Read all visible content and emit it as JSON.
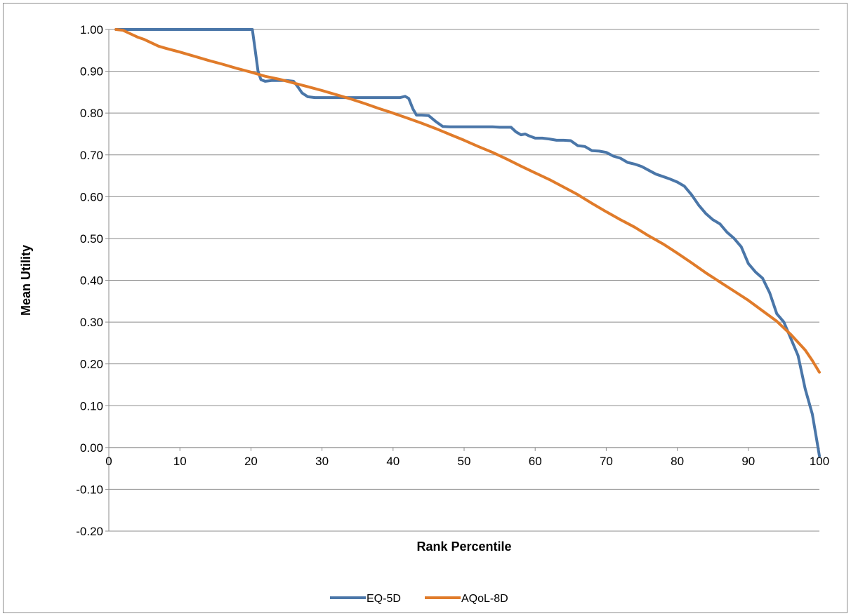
{
  "chart_data": {
    "type": "line",
    "title": "",
    "xlabel": "Rank Percentile",
    "ylabel": "Mean Utility",
    "xlim": [
      0,
      100
    ],
    "ylim": [
      -0.2,
      1.0
    ],
    "x_ticks": [
      "0",
      "10",
      "20",
      "30",
      "40",
      "50",
      "60",
      "70",
      "80",
      "90",
      "100"
    ],
    "y_ticks": [
      "1.00",
      "0.90",
      "0.80",
      "0.70",
      "0.60",
      "0.50",
      "0.40",
      "0.30",
      "0.20",
      "0.10",
      "0.00",
      "-0.10",
      "-0.20"
    ],
    "grid": "horizontal",
    "legend_position": "bottom",
    "series": [
      {
        "name": "EQ-5D",
        "color": "#4a76a8",
        "points": [
          [
            1,
            1.0
          ],
          [
            19.5,
            1.0
          ],
          [
            20.2,
            1.0
          ],
          [
            20.6,
            0.95
          ],
          [
            21.0,
            0.9
          ],
          [
            21.4,
            0.88
          ],
          [
            22,
            0.876
          ],
          [
            23,
            0.878
          ],
          [
            25,
            0.878
          ],
          [
            26,
            0.876
          ],
          [
            26.5,
            0.865
          ],
          [
            27.2,
            0.848
          ],
          [
            28,
            0.839
          ],
          [
            29,
            0.837
          ],
          [
            33,
            0.837
          ],
          [
            38,
            0.837
          ],
          [
            41,
            0.837
          ],
          [
            41.7,
            0.84
          ],
          [
            42.2,
            0.835
          ],
          [
            42.8,
            0.81
          ],
          [
            43.3,
            0.795
          ],
          [
            44,
            0.795
          ],
          [
            45,
            0.794
          ],
          [
            46,
            0.78
          ],
          [
            47,
            0.768
          ],
          [
            48,
            0.767
          ],
          [
            50,
            0.767
          ],
          [
            54,
            0.767
          ],
          [
            55,
            0.766
          ],
          [
            56,
            0.766
          ],
          [
            56.6,
            0.766
          ],
          [
            57.3,
            0.755
          ],
          [
            58,
            0.748
          ],
          [
            58.6,
            0.75
          ],
          [
            59.2,
            0.745
          ],
          [
            60,
            0.74
          ],
          [
            61,
            0.74
          ],
          [
            62,
            0.738
          ],
          [
            63,
            0.735
          ],
          [
            64,
            0.735
          ],
          [
            65,
            0.734
          ],
          [
            66,
            0.722
          ],
          [
            67,
            0.72
          ],
          [
            68,
            0.71
          ],
          [
            69,
            0.709
          ],
          [
            70,
            0.706
          ],
          [
            71,
            0.697
          ],
          [
            72,
            0.692
          ],
          [
            73,
            0.682
          ],
          [
            74,
            0.678
          ],
          [
            75,
            0.672
          ],
          [
            76,
            0.663
          ],
          [
            77,
            0.654
          ],
          [
            78,
            0.648
          ],
          [
            79,
            0.642
          ],
          [
            80,
            0.635
          ],
          [
            81,
            0.625
          ],
          [
            82,
            0.605
          ],
          [
            83,
            0.58
          ],
          [
            84,
            0.56
          ],
          [
            85,
            0.545
          ],
          [
            86,
            0.535
          ],
          [
            87,
            0.515
          ],
          [
            88,
            0.5
          ],
          [
            89,
            0.48
          ],
          [
            90,
            0.44
          ],
          [
            91,
            0.42
          ],
          [
            92,
            0.405
          ],
          [
            93,
            0.37
          ],
          [
            94,
            0.32
          ],
          [
            95,
            0.3
          ],
          [
            96,
            0.26
          ],
          [
            97,
            0.22
          ],
          [
            97.5,
            0.18
          ],
          [
            98,
            0.14
          ],
          [
            99,
            0.08
          ],
          [
            99.6,
            0.02
          ],
          [
            100,
            -0.02
          ]
        ]
      },
      {
        "name": "AQoL-8D",
        "color": "#e07b2a",
        "points": [
          [
            1,
            1.0
          ],
          [
            2,
            0.998
          ],
          [
            3,
            0.99
          ],
          [
            4,
            0.982
          ],
          [
            5,
            0.976
          ],
          [
            6,
            0.968
          ],
          [
            7,
            0.96
          ],
          [
            8,
            0.955
          ],
          [
            10,
            0.946
          ],
          [
            12,
            0.936
          ],
          [
            14,
            0.926
          ],
          [
            16,
            0.917
          ],
          [
            18,
            0.907
          ],
          [
            20,
            0.898
          ],
          [
            22,
            0.888
          ],
          [
            24,
            0.881
          ],
          [
            26,
            0.872
          ],
          [
            28,
            0.863
          ],
          [
            30,
            0.854
          ],
          [
            32,
            0.844
          ],
          [
            34,
            0.834
          ],
          [
            36,
            0.823
          ],
          [
            38,
            0.811
          ],
          [
            40,
            0.8
          ],
          [
            42,
            0.788
          ],
          [
            44,
            0.776
          ],
          [
            46,
            0.763
          ],
          [
            48,
            0.749
          ],
          [
            50,
            0.735
          ],
          [
            52,
            0.72
          ],
          [
            54,
            0.706
          ],
          [
            56,
            0.69
          ],
          [
            58,
            0.673
          ],
          [
            60,
            0.657
          ],
          [
            62,
            0.641
          ],
          [
            64,
            0.623
          ],
          [
            66,
            0.605
          ],
          [
            68,
            0.584
          ],
          [
            70,
            0.564
          ],
          [
            72,
            0.545
          ],
          [
            74,
            0.527
          ],
          [
            76,
            0.506
          ],
          [
            78,
            0.487
          ],
          [
            80,
            0.465
          ],
          [
            82,
            0.442
          ],
          [
            84,
            0.418
          ],
          [
            86,
            0.396
          ],
          [
            88,
            0.374
          ],
          [
            90,
            0.352
          ],
          [
            92,
            0.327
          ],
          [
            94,
            0.302
          ],
          [
            96,
            0.27
          ],
          [
            98,
            0.233
          ],
          [
            99,
            0.208
          ],
          [
            100,
            0.18
          ]
        ]
      }
    ]
  }
}
